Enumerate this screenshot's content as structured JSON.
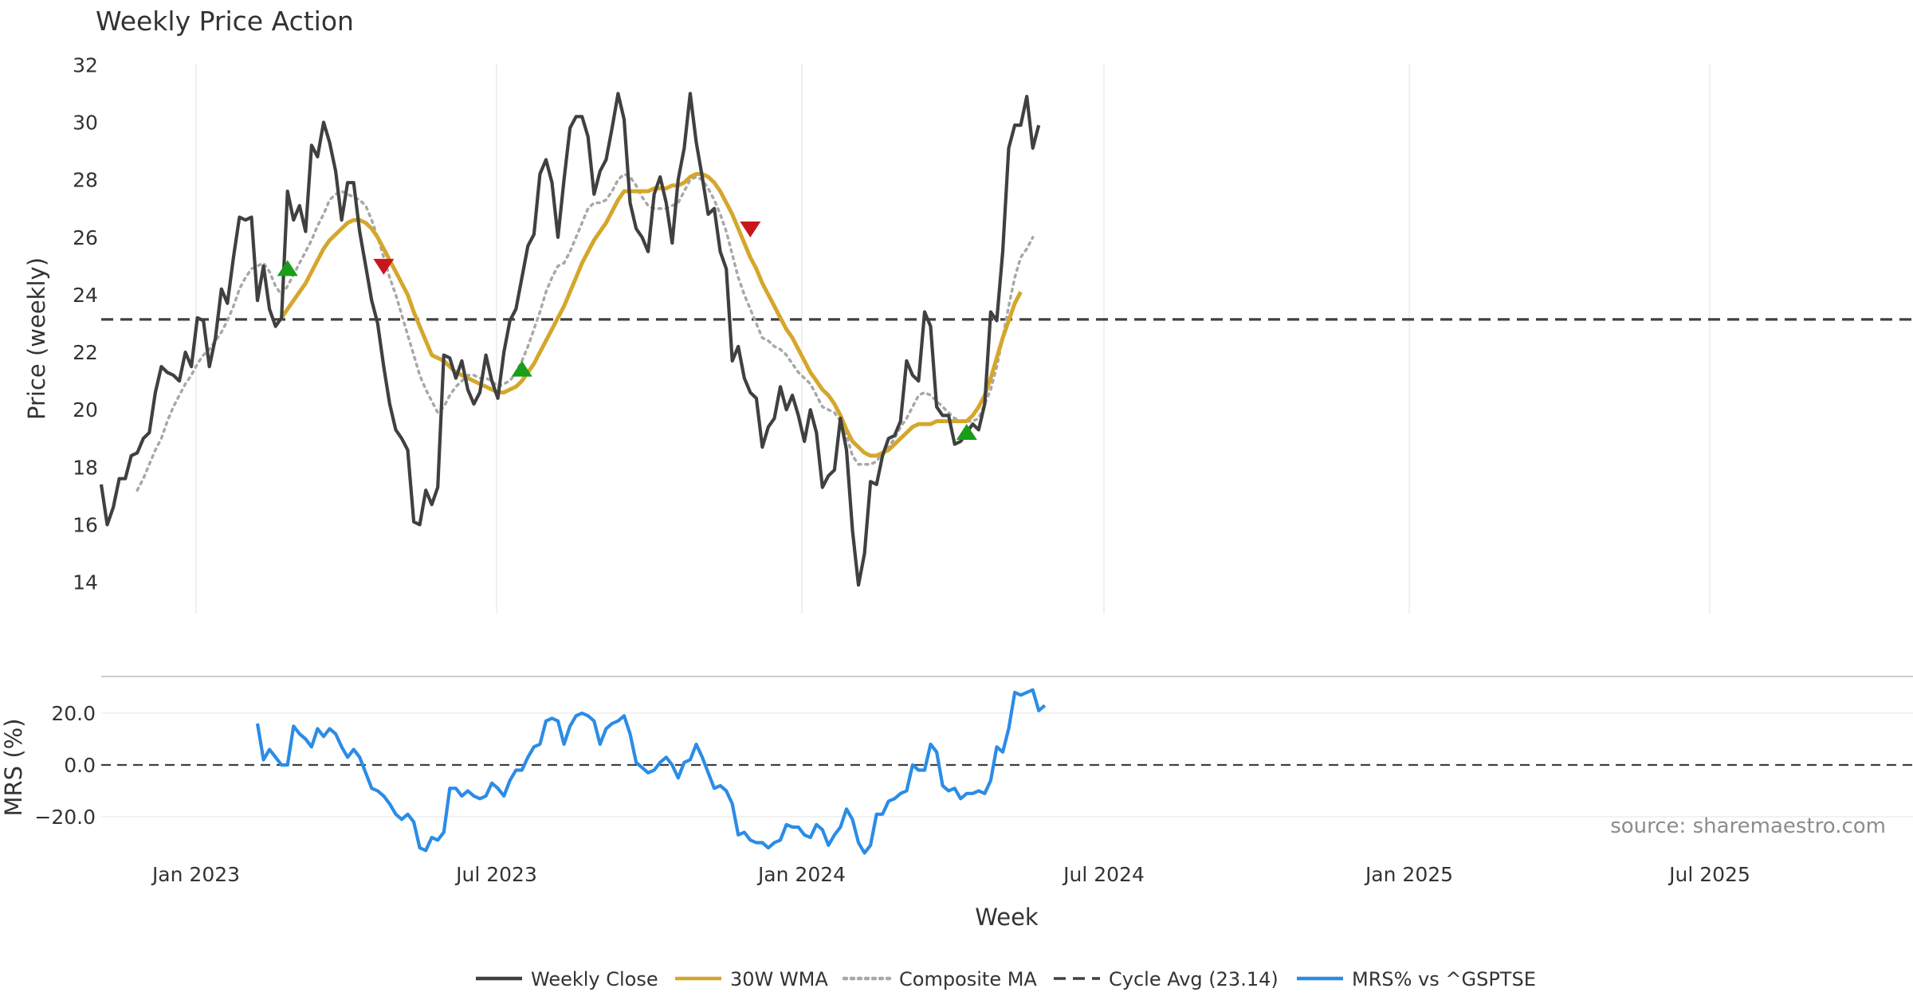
{
  "chart_data": {
    "type": "line",
    "title": "Weekly Price Action",
    "xlabel": "Week",
    "source": "source: sharemaestro.com",
    "x_ticks": [
      "Jan 2023",
      "Jul 2023",
      "Jan 2024",
      "Jul 2024",
      "Jan 2025",
      "Jul 2025"
    ],
    "price_panel": {
      "ylabel": "Price (weekly)",
      "ylim": [
        13,
        32
      ],
      "y_ticks": [
        "14",
        "16",
        "18",
        "20",
        "22",
        "24",
        "26",
        "28",
        "30",
        "32"
      ],
      "cycle_avg": 23.14,
      "weekly_close": [
        17.4,
        16.0,
        16.6,
        17.6,
        17.6,
        18.4,
        18.5,
        19.0,
        19.2,
        20.6,
        21.5,
        21.3,
        21.2,
        21.0,
        22.0,
        21.5,
        23.2,
        23.1,
        21.5,
        22.5,
        24.2,
        23.7,
        25.3,
        26.7,
        26.6,
        26.7,
        23.8,
        25.0,
        23.5,
        22.9,
        23.2,
        27.6,
        26.6,
        27.1,
        26.2,
        29.2,
        28.8,
        30.0,
        29.3,
        28.3,
        26.6,
        27.9,
        27.9,
        26.2,
        25.0,
        23.8,
        23.0,
        21.5,
        20.2,
        19.3,
        19.0,
        18.6,
        16.1,
        16.0,
        17.2,
        16.7,
        17.3,
        21.9,
        21.8,
        21.1,
        21.7,
        20.7,
        20.2,
        20.6,
        21.9,
        21.0,
        20.4,
        22.0,
        23.1,
        23.5,
        24.6,
        25.7,
        26.1,
        28.2,
        28.7,
        27.9,
        26.0,
        28.0,
        29.8,
        30.2,
        30.2,
        29.5,
        27.5,
        28.3,
        28.7,
        29.8,
        31.0,
        30.1,
        27.2,
        26.3,
        26.0,
        25.5,
        27.5,
        28.1,
        27.2,
        25.8,
        28.0,
        29.1,
        31.0,
        29.3,
        28.1,
        26.8,
        27.0,
        25.5,
        24.9,
        21.7,
        22.2,
        21.1,
        20.6,
        20.4,
        18.7,
        19.4,
        19.7,
        20.8,
        20.0,
        20.5,
        19.8,
        18.9,
        20.0,
        19.2,
        17.3,
        17.7,
        17.9,
        19.7,
        18.6,
        15.8,
        13.9,
        15.0,
        17.5,
        17.4,
        18.4,
        19.0,
        19.1,
        19.6,
        21.7,
        21.2,
        21.0,
        23.4,
        22.9,
        20.1,
        19.8,
        19.8,
        18.8,
        18.9,
        19.2,
        19.5,
        19.3,
        20.2,
        23.4,
        23.1,
        25.5,
        29.1,
        29.9,
        29.9,
        30.9,
        29.1,
        29.9
      ],
      "wma_30w": [
        null,
        null,
        null,
        null,
        null,
        null,
        null,
        null,
        null,
        null,
        null,
        null,
        null,
        null,
        null,
        null,
        null,
        null,
        null,
        null,
        null,
        null,
        null,
        null,
        null,
        null,
        null,
        null,
        null,
        null,
        23.2,
        23.5,
        23.8,
        24.1,
        24.4,
        24.8,
        25.2,
        25.6,
        25.9,
        26.1,
        26.3,
        26.5,
        26.6,
        26.6,
        26.5,
        26.3,
        26.0,
        25.6,
        25.2,
        24.8,
        24.4,
        24.0,
        23.4,
        22.9,
        22.4,
        21.9,
        21.8,
        21.7,
        21.5,
        21.3,
        21.2,
        21.1,
        21.0,
        20.9,
        20.8,
        20.7,
        20.6,
        20.6,
        20.7,
        20.8,
        21.0,
        21.3,
        21.6,
        22.0,
        22.4,
        22.8,
        23.2,
        23.6,
        24.1,
        24.6,
        25.1,
        25.5,
        25.9,
        26.2,
        26.5,
        26.9,
        27.3,
        27.6,
        27.6,
        27.6,
        27.6,
        27.6,
        27.7,
        27.7,
        27.7,
        27.8,
        27.8,
        27.9,
        28.1,
        28.2,
        28.2,
        28.1,
        27.9,
        27.6,
        27.2,
        26.8,
        26.3,
        25.8,
        25.3,
        24.9,
        24.4,
        24.0,
        23.6,
        23.2,
        22.8,
        22.5,
        22.1,
        21.7,
        21.3,
        21.0,
        20.7,
        20.5,
        20.2,
        19.8,
        19.3,
        18.9,
        18.7,
        18.5,
        18.4,
        18.4,
        18.5,
        18.6,
        18.8,
        19.0,
        19.2,
        19.4,
        19.5,
        19.5,
        19.5,
        19.6,
        19.6,
        19.6,
        19.6,
        19.6,
        19.6,
        19.8,
        20.1,
        20.5,
        21.1,
        21.8,
        22.5,
        23.1,
        23.7,
        24.1
      ]
    },
    "composite_ma": [
      null,
      null,
      null,
      null,
      null,
      null,
      17.2,
      17.6,
      18.1,
      18.6,
      19.0,
      19.6,
      20.1,
      20.5,
      20.9,
      21.2,
      21.6,
      21.9,
      22.1,
      22.4,
      22.7,
      23.1,
      23.6,
      24.2,
      24.6,
      24.9,
      25.0,
      25.1,
      24.8,
      24.3,
      24.0,
      24.3,
      24.7,
      25.1,
      25.5,
      25.9,
      26.4,
      26.8,
      27.3,
      27.5,
      27.6,
      27.5,
      27.4,
      27.3,
      27.1,
      26.6,
      26.0,
      25.3,
      24.6,
      24.0,
      23.3,
      22.6,
      21.9,
      21.2,
      20.7,
      20.3,
      19.9,
      20.1,
      20.5,
      20.8,
      21.0,
      21.2,
      21.2,
      21.1,
      21.1,
      21.0,
      20.8,
      20.9,
      21.0,
      21.3,
      21.7,
      22.2,
      22.8,
      23.4,
      24.1,
      24.6,
      25.0,
      25.1,
      25.5,
      26.0,
      26.5,
      27.0,
      27.2,
      27.2,
      27.3,
      27.6,
      28.0,
      28.2,
      28.1,
      27.8,
      27.4,
      27.1,
      27.0,
      27.0,
      27.0,
      27.1,
      27.2,
      27.6,
      28.0,
      28.1,
      28.0,
      27.7,
      27.3,
      26.8,
      26.2,
      25.4,
      24.6,
      24.0,
      23.5,
      23.0,
      22.5,
      22.4,
      22.2,
      22.1,
      21.9,
      21.6,
      21.3,
      21.1,
      20.9,
      20.5,
      20.1,
      20.0,
      19.9,
      19.6,
      19.1,
      18.4,
      18.1,
      18.1,
      18.1,
      18.2,
      18.5,
      18.7,
      19.0,
      19.4,
      19.7,
      20.1,
      20.5,
      20.6,
      20.5,
      20.3,
      20.1,
      19.9,
      19.7,
      19.6,
      19.6,
      19.6,
      19.7,
      20.2,
      20.7,
      21.5,
      22.5,
      23.6,
      24.6,
      25.3,
      25.6,
      26.0
    ],
    "signals": {
      "buy": [
        {
          "week": 31,
          "price": 24.9
        },
        {
          "week": 70,
          "price": 21.4
        },
        {
          "week": 144,
          "price": 19.2
        }
      ],
      "sell": [
        {
          "week": 47,
          "price": 25.0
        },
        {
          "week": 108,
          "price": 26.3
        }
      ]
    },
    "mrs_panel": {
      "ylabel": "MRS (%)",
      "ylim": [
        -33,
        33
      ],
      "y_ticks": [
        "20.0",
        "0.0",
        "−20.0"
      ],
      "values": [
        null,
        null,
        null,
        null,
        null,
        null,
        null,
        null,
        null,
        null,
        null,
        null,
        null,
        null,
        null,
        null,
        null,
        null,
        null,
        null,
        null,
        null,
        null,
        null,
        null,
        null,
        16.0,
        2.0,
        6.0,
        3.0,
        0.0,
        0.0,
        15.0,
        12.0,
        10.0,
        7.0,
        14.0,
        11.0,
        14.0,
        12.0,
        7.0,
        3.0,
        6.0,
        3.0,
        -3.0,
        -9.0,
        -10.0,
        -12.0,
        -15.0,
        -19.0,
        -21.0,
        -19.0,
        -22.0,
        -32.0,
        -33.0,
        -28.0,
        -29.0,
        -26.0,
        -9.0,
        -9.0,
        -12.0,
        -10.0,
        -12.0,
        -13.0,
        -12.0,
        -7.0,
        -9.0,
        -12.0,
        -6.0,
        -2.0,
        -2.0,
        3.0,
        7.0,
        8.0,
        17.0,
        18.0,
        17.0,
        8.0,
        15.0,
        19.0,
        20.0,
        19.0,
        17.0,
        8.0,
        14.0,
        16.0,
        17.0,
        19.0,
        12.0,
        1.0,
        -1.0,
        -3.0,
        -2.0,
        1.0,
        3.0,
        0.0,
        -5.0,
        1.0,
        2.0,
        8.0,
        3.0,
        -3.0,
        -9.0,
        -8.0,
        -10.0,
        -15.0,
        -27.0,
        -26.0,
        -29.0,
        -30.0,
        -30.0,
        -32.0,
        -30.0,
        -29.0,
        -23.0,
        -24.0,
        -24.0,
        -27.0,
        -28.0,
        -23.0,
        -25.0,
        -31.0,
        -27.0,
        -24.0,
        -17.0,
        -21.0,
        -30.0,
        -34.0,
        -31.0,
        -19.0,
        -19.0,
        -14.0,
        -13.0,
        -11.0,
        -10.0,
        0.0,
        -2.0,
        -2.0,
        8.0,
        5.0,
        -8.0,
        -10.0,
        -9.0,
        -13.0,
        -11.0,
        -11.0,
        -10.0,
        -11.0,
        -6.0,
        7.0,
        5.0,
        14.0,
        28.0,
        27.0,
        28.0,
        29.0,
        21.0,
        23.0
      ]
    },
    "legend": [
      {
        "label": "Weekly Close",
        "color": "#404040",
        "style": "solid"
      },
      {
        "label": "30W WMA",
        "color": "#d4a72c",
        "style": "solid"
      },
      {
        "label": "Composite MA",
        "color": "#a8a8a8",
        "style": "dotted"
      },
      {
        "label": "Cycle Avg (23.14)",
        "color": "#404040",
        "style": "dashed"
      },
      {
        "label": "MRS% vs ^GSPTSE",
        "color": "#2b8ce6",
        "style": "solid"
      }
    ],
    "colors": {
      "buy": "#1a9e1a",
      "sell": "#c8161d"
    }
  }
}
